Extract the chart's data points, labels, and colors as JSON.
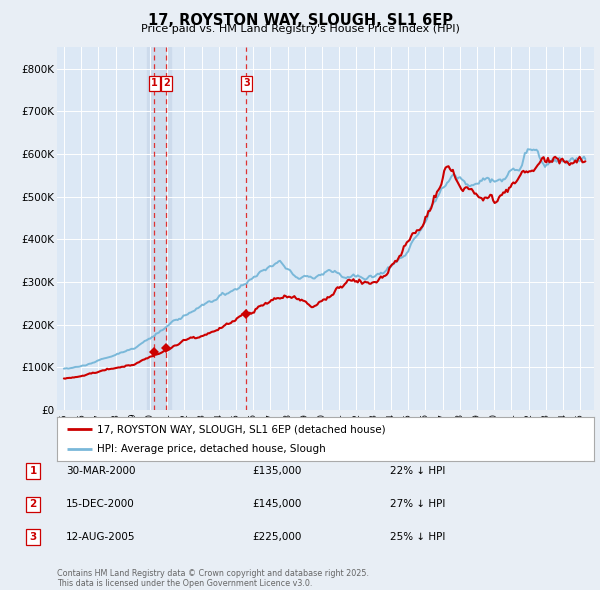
{
  "title": "17, ROYSTON WAY, SLOUGH, SL1 6EP",
  "subtitle": "Price paid vs. HM Land Registry's House Price Index (HPI)",
  "legend_line1": "17, ROYSTON WAY, SLOUGH, SL1 6EP (detached house)",
  "legend_line2": "HPI: Average price, detached house, Slough",
  "footer": "Contains HM Land Registry data © Crown copyright and database right 2025.\nThis data is licensed under the Open Government Licence v3.0.",
  "transactions": [
    {
      "num": 1,
      "date": "30-MAR-2000",
      "year": 2000.24,
      "price": 135000,
      "pct": "22%",
      "dir": "↓"
    },
    {
      "num": 2,
      "date": "15-DEC-2000",
      "year": 2000.95,
      "price": 145000,
      "pct": "27%",
      "dir": "↓"
    },
    {
      "num": 3,
      "date": "12-AUG-2005",
      "year": 2005.61,
      "price": 225000,
      "pct": "25%",
      "dir": "↓"
    }
  ],
  "hpi_color": "#7ab8d9",
  "price_color": "#cc0000",
  "background_color": "#e8eef5",
  "plot_bg": "#dce8f5",
  "grid_color": "#ffffff",
  "vband_color": "#ccdaec",
  "ylim": [
    0,
    850000
  ],
  "yticks": [
    0,
    100000,
    200000,
    300000,
    400000,
    500000,
    600000,
    700000,
    800000
  ],
  "ytick_labels": [
    "£0",
    "£100K",
    "£200K",
    "£300K",
    "£400K",
    "£500K",
    "£600K",
    "£700K",
    "£800K"
  ],
  "xlim_start": 1994.6,
  "xlim_end": 2025.8,
  "xticks": [
    1995,
    1996,
    1997,
    1998,
    1999,
    2000,
    2001,
    2002,
    2003,
    2004,
    2005,
    2006,
    2007,
    2008,
    2009,
    2010,
    2011,
    2012,
    2013,
    2014,
    2015,
    2016,
    2017,
    2018,
    2019,
    2020,
    2021,
    2022,
    2023,
    2024,
    2025
  ]
}
